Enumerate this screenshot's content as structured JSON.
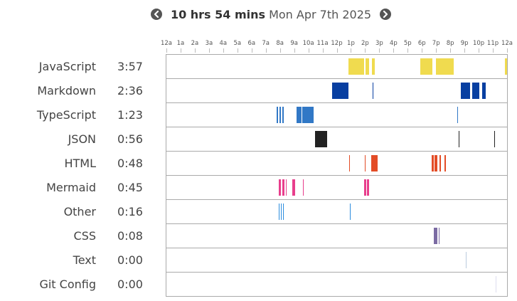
{
  "header": {
    "duration": "10 hrs 54 mins",
    "date": "Mon Apr 7th 2025",
    "prev_icon": "chevron-left-circle-icon",
    "next_icon": "chevron-right-circle-icon"
  },
  "chart_data": {
    "type": "timeline",
    "title": "10 hrs 54 mins Mon Apr 7th 2025",
    "x_unit": "hour of day (0-24)",
    "xlim": [
      0,
      24
    ],
    "tick_labels": [
      "12a",
      "1a",
      "2a",
      "3a",
      "4a",
      "5a",
      "6a",
      "7a",
      "8a",
      "9a",
      "10a",
      "11a",
      "12p",
      "1p",
      "2p",
      "3p",
      "4p",
      "5p",
      "6p",
      "7p",
      "8p",
      "9p",
      "10p",
      "11p",
      "12a"
    ],
    "languages": [
      {
        "name": "JavaScript",
        "time": "3:57",
        "color": "#f0db4f",
        "segments": [
          [
            12.85,
            13.95
          ],
          [
            14.05,
            14.3
          ],
          [
            14.5,
            14.7
          ],
          [
            17.9,
            18.75
          ],
          [
            19.0,
            20.25
          ],
          [
            23.85,
            24.0
          ]
        ]
      },
      {
        "name": "Markdown",
        "time": "2:36",
        "color": "#083fa1",
        "segments": [
          [
            11.65,
            12.85
          ],
          [
            14.55,
            14.6
          ],
          [
            20.75,
            21.4
          ],
          [
            21.55,
            22.05
          ],
          [
            22.25,
            22.5
          ]
        ]
      },
      {
        "name": "TypeScript",
        "time": "1:23",
        "color": "#3178c6",
        "segments": [
          [
            7.75,
            7.85
          ],
          [
            7.95,
            8.05
          ],
          [
            8.15,
            8.25
          ],
          [
            9.15,
            9.5
          ],
          [
            9.55,
            10.35
          ],
          [
            20.5,
            20.55
          ]
        ]
      },
      {
        "name": "JSON",
        "time": "0:56",
        "color": "#222222",
        "segments": [
          [
            10.45,
            11.3
          ],
          [
            20.6,
            20.65
          ],
          [
            23.1,
            23.15
          ]
        ]
      },
      {
        "name": "HTML",
        "time": "0:48",
        "color": "#e34c26",
        "segments": [
          [
            12.9,
            12.95
          ],
          [
            14.0,
            14.05
          ],
          [
            14.45,
            14.9
          ],
          [
            18.7,
            18.85
          ],
          [
            18.9,
            19.1
          ],
          [
            19.25,
            19.35
          ],
          [
            19.6,
            19.7
          ]
        ]
      },
      {
        "name": "Mermaid",
        "time": "0:45",
        "color": "#e83e8c",
        "segments": [
          [
            7.9,
            8.05
          ],
          [
            8.15,
            8.3
          ],
          [
            8.4,
            8.45
          ],
          [
            8.85,
            9.05
          ],
          [
            9.6,
            9.65
          ],
          [
            13.95,
            14.1
          ],
          [
            14.15,
            14.3
          ]
        ]
      },
      {
        "name": "Other",
        "time": "0:16",
        "color": "#2b8cde",
        "segments": [
          [
            7.9,
            7.98
          ],
          [
            8.05,
            8.12
          ],
          [
            8.2,
            8.28
          ],
          [
            12.95,
            13.0
          ]
        ]
      },
      {
        "name": "CSS",
        "time": "0:08",
        "color": "#7b6ba3",
        "segments": [
          [
            18.85,
            19.1
          ],
          [
            19.2,
            19.25
          ]
        ]
      },
      {
        "name": "Text",
        "time": "0:00",
        "color": "#bcd",
        "segments": [
          [
            21.1,
            21.15
          ]
        ]
      },
      {
        "name": "Git Config",
        "time": "0:00",
        "color": "#dde",
        "segments": [
          [
            23.2,
            23.25
          ]
        ]
      }
    ]
  }
}
